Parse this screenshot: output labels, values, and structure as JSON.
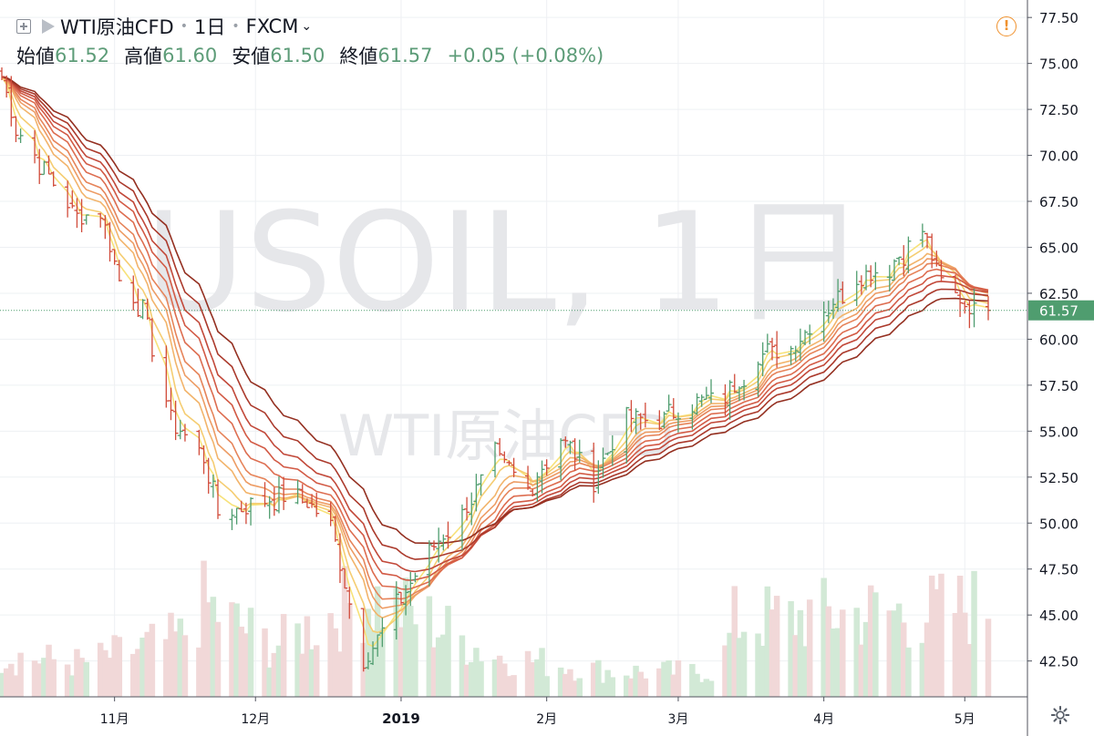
{
  "header": {
    "symbol": "WTI原油CFD",
    "interval": "1日",
    "exchange": "FXCM",
    "open_label": "始値",
    "open": "61.52",
    "high_label": "高値",
    "high": "61.60",
    "low_label": "安値",
    "low": "61.50",
    "close_label": "終値",
    "close": "61.57",
    "change": "+0.05 (+0.08%)"
  },
  "watermark": {
    "line1": "USOIL, 1日",
    "line2": "WTI原油CFD"
  },
  "current_price_label": "61.57",
  "colors": {
    "up": "#4f9d6f",
    "down": "#d14b3a",
    "vol_up": "#d2e9d6",
    "vol_down": "#f1d8d8",
    "price_tag": "#4f9d6f",
    "ribbon": [
      "#f7e27a",
      "#f5cd72",
      "#f2b46b",
      "#ed9c64",
      "#e6845a",
      "#dd6d50",
      "#d25a45",
      "#c2493a",
      "#ab3a2c",
      "#943021"
    ]
  },
  "chart_data": {
    "type": "ohlc",
    "y_axis": {
      "min": 40.55,
      "max": 78.45,
      "ticks": [
        42.5,
        45.0,
        47.5,
        50.0,
        52.5,
        55.0,
        57.5,
        60.0,
        62.5,
        65.0,
        67.5,
        70.0,
        72.5,
        75.0,
        77.5
      ],
      "tick_labels": [
        "42.50",
        "45.00",
        "47.50",
        "50.00",
        "52.50",
        "55.00",
        "57.50",
        "60.00",
        "62.50",
        "65.00",
        "67.50",
        "70.00",
        "72.50",
        "75.00",
        "77.50"
      ]
    },
    "x_axis": {
      "start_date": "2018-10-08",
      "end_date": "2019-05-06",
      "ticks": [
        {
          "date": "2018-11-01",
          "label": "11月"
        },
        {
          "date": "2018-12-01",
          "label": "12月"
        },
        {
          "date": "2019-01-01",
          "label": "2019"
        },
        {
          "date": "2019-02-01",
          "label": "2月"
        },
        {
          "date": "2019-03-01",
          "label": "3月"
        },
        {
          "date": "2019-04-01",
          "label": "4月"
        },
        {
          "date": "2019-05-01",
          "label": "5月"
        }
      ]
    },
    "current_price": 61.57,
    "close_keypoints": [
      [
        "2018-10-08",
        74.3
      ],
      [
        "2018-10-11",
        71.5
      ],
      [
        "2018-10-18",
        68.9
      ],
      [
        "2018-10-24",
        66.6
      ],
      [
        "2018-10-29",
        67.0
      ],
      [
        "2018-11-02",
        63.2
      ],
      [
        "2018-11-07",
        61.7
      ],
      [
        "2018-11-13",
        55.7
      ],
      [
        "2018-11-20",
        53.5
      ],
      [
        "2018-11-23",
        50.5
      ],
      [
        "2018-11-30",
        50.9
      ],
      [
        "2018-12-06",
        51.5
      ],
      [
        "2018-12-12",
        51.1
      ],
      [
        "2018-12-17",
        49.9
      ],
      [
        "2018-12-24",
        42.5
      ],
      [
        "2018-12-31",
        45.4
      ],
      [
        "2019-01-07",
        48.5
      ],
      [
        "2019-01-14",
        50.5
      ],
      [
        "2019-01-21",
        53.6
      ],
      [
        "2019-01-28",
        51.9
      ],
      [
        "2019-02-04",
        54.6
      ],
      [
        "2019-02-11",
        52.5
      ],
      [
        "2019-02-18",
        55.8
      ],
      [
        "2019-02-25",
        55.5
      ],
      [
        "2019-03-04",
        56.6
      ],
      [
        "2019-03-11",
        56.8
      ],
      [
        "2019-03-18",
        59.1
      ],
      [
        "2019-03-25",
        59.5
      ],
      [
        "2019-04-01",
        61.6
      ],
      [
        "2019-04-08",
        63.3
      ],
      [
        "2019-04-15",
        64.0
      ],
      [
        "2019-04-22",
        65.9
      ],
      [
        "2019-04-26",
        63.0
      ],
      [
        "2019-05-03",
        61.6
      ],
      [
        "2019-05-06",
        61.57
      ]
    ],
    "volume_keypoints": [
      [
        "2018-10-08",
        0.25
      ],
      [
        "2018-10-25",
        0.2
      ],
      [
        "2018-11-15",
        0.35
      ],
      [
        "2018-11-20",
        0.55
      ],
      [
        "2018-12-05",
        0.3
      ],
      [
        "2018-12-18",
        0.5
      ],
      [
        "2018-12-24",
        0.6
      ],
      [
        "2019-01-07",
        0.45
      ],
      [
        "2019-01-20",
        0.25
      ],
      [
        "2019-02-15",
        0.15
      ],
      [
        "2019-03-10",
        0.15
      ],
      [
        "2019-03-13",
        0.45
      ],
      [
        "2019-04-10",
        0.5
      ],
      [
        "2019-04-22",
        0.5
      ],
      [
        "2019-05-06",
        0.55
      ]
    ],
    "ribbon_ema_periods": [
      3,
      5,
      8,
      10,
      12,
      15,
      18,
      21,
      25,
      30
    ]
  }
}
